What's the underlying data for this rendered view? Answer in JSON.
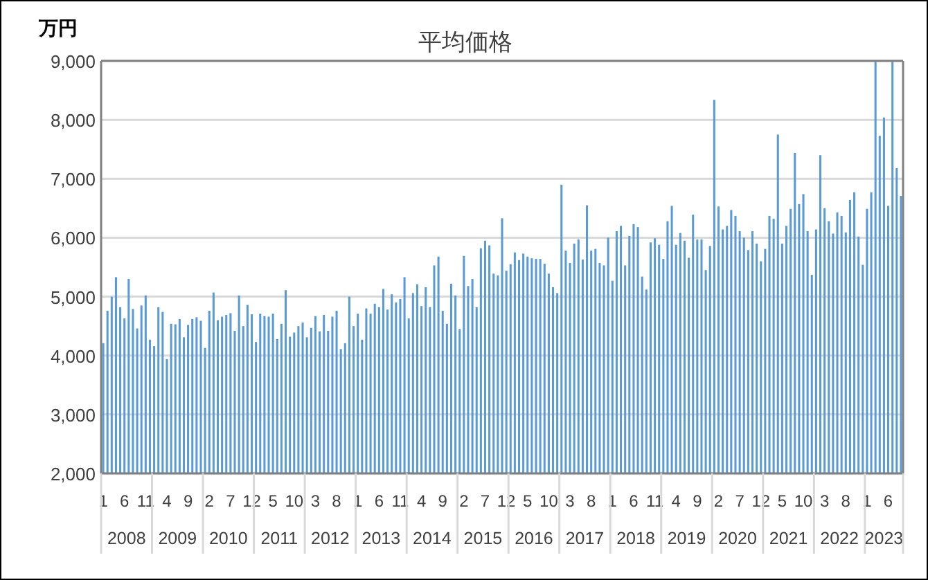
{
  "chart_data": {
    "type": "bar",
    "title": "平均価格",
    "ylabel": "万円",
    "color": "#5b9bd5",
    "categories": [
      "1",
      null,
      null,
      null,
      null,
      "6",
      null,
      null,
      null,
      null,
      "11",
      null,
      null,
      null,
      null,
      "4",
      null,
      null,
      null,
      null,
      "9",
      null,
      null,
      null,
      null,
      "2",
      null,
      null,
      null,
      null,
      "7",
      null,
      null,
      null,
      null,
      "12",
      null,
      null,
      null,
      null,
      "5",
      null,
      null,
      null,
      null,
      "10",
      null,
      null,
      null,
      null,
      "3",
      null,
      null,
      null,
      null,
      "8",
      null,
      null,
      null,
      null,
      "1",
      null,
      null,
      null,
      null,
      "6",
      null,
      null,
      null,
      null,
      "11",
      null,
      null,
      null,
      null,
      "4",
      null,
      null,
      null,
      null,
      "9",
      null,
      null,
      null,
      null,
      "2",
      null,
      null,
      null,
      null,
      "7",
      null,
      null,
      null,
      null,
      "12",
      null,
      null,
      null,
      null,
      "5",
      null,
      null,
      null,
      null,
      "10",
      null,
      null,
      null,
      null,
      "3",
      null,
      null,
      null,
      null,
      "8",
      null,
      null,
      null,
      null,
      "1",
      null,
      null,
      null,
      null,
      "6",
      null,
      null,
      null,
      null,
      "11",
      null,
      null,
      null,
      null,
      "4",
      null,
      null,
      null,
      null,
      "9",
      null,
      null,
      null,
      null,
      "2",
      null,
      null,
      null,
      null,
      "7",
      null,
      null,
      null,
      null,
      "12",
      null,
      null,
      null,
      null,
      "5",
      null,
      null,
      null,
      null,
      "10",
      null,
      null,
      null,
      null,
      "3",
      null,
      null,
      null,
      null,
      "8",
      null,
      null,
      null,
      null,
      "1",
      null,
      null,
      null,
      null,
      "6",
      null,
      null,
      null
    ],
    "values": [
      4210,
      4760,
      5000,
      5330,
      4820,
      4630,
      5300,
      4790,
      4460,
      4850,
      5020,
      4270,
      4160,
      4820,
      4740,
      3940,
      4540,
      4530,
      4620,
      4310,
      4520,
      4620,
      4650,
      4590,
      4130,
      4760,
      5070,
      4600,
      4660,
      4690,
      4720,
      4420,
      5020,
      4500,
      4860,
      4700,
      4230,
      4710,
      4670,
      4660,
      4710,
      4280,
      4540,
      5110,
      4320,
      4390,
      4500,
      4560,
      4310,
      4470,
      4670,
      4410,
      4690,
      4420,
      4660,
      4760,
      4110,
      4210,
      5000,
      4500,
      4710,
      4270,
      4800,
      4710,
      4880,
      4820,
      5130,
      4780,
      5040,
      4900,
      4960,
      5330,
      4630,
      5060,
      5210,
      4840,
      5160,
      4820,
      5530,
      5680,
      4760,
      4540,
      5220,
      5020,
      4450,
      5690,
      5180,
      5300,
      4820,
      5820,
      5950,
      5870,
      5390,
      5360,
      6330,
      5440,
      5550,
      5750,
      5620,
      5730,
      5680,
      5650,
      5640,
      5640,
      5560,
      5390,
      5160,
      5060,
      6900,
      5780,
      5570,
      5900,
      5970,
      5630,
      6550,
      5780,
      5810,
      5570,
      5530,
      6000,
      5270,
      6110,
      6200,
      5530,
      6030,
      6230,
      6180,
      5340,
      5120,
      5920,
      5990,
      5880,
      5640,
      6280,
      6540,
      5880,
      6080,
      5950,
      5660,
      6390,
      5970,
      5970,
      5450,
      5860,
      8340,
      6530,
      6140,
      6200,
      6470,
      6370,
      6110,
      6000,
      5790,
      6110,
      5900,
      5600,
      5810,
      6370,
      6320,
      7750,
      5900,
      6200,
      6490,
      7440,
      6570,
      6740,
      6110,
      5370,
      6140,
      7400,
      6500,
      6280,
      6070,
      6430,
      6370,
      6090,
      6640,
      6770,
      6020,
      5540,
      6490,
      6770,
      9000,
      7730,
      8040,
      6540,
      9000,
      7180,
      6710
    ],
    "annotations": [
      "2008",
      "2009",
      "2010",
      "2011",
      "2012",
      "2013",
      "2014",
      "2015",
      "2016",
      "2017",
      "2018",
      "2019",
      "2020",
      "2021",
      "2022",
      "2023"
    ],
    "ylim": [
      2000,
      9000
    ],
    "yticks": [
      {
        "value": 2000,
        "label": "2,000"
      },
      {
        "value": 3000,
        "label": "3,000"
      },
      {
        "value": 4000,
        "label": "4,000"
      },
      {
        "value": 5000,
        "label": "5,000"
      },
      {
        "value": 6000,
        "label": "6,000"
      },
      {
        "value": 7000,
        "label": "7,000"
      },
      {
        "value": 8000,
        "label": "8,000"
      },
      {
        "value": 9000,
        "label": "9,000"
      }
    ],
    "grid": "y"
  }
}
